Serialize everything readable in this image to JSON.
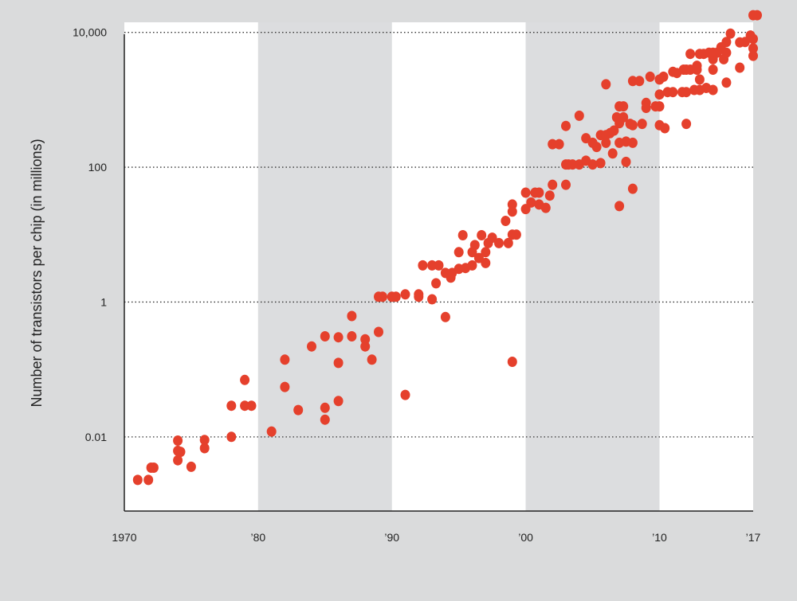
{
  "chart_data": {
    "type": "scatter",
    "title": "",
    "xlabel": "",
    "ylabel": "Number of transistors per chip (in millions)",
    "y_scale": "log",
    "xlim": [
      1970,
      2017
    ],
    "ylim_log10": [
      -3.1,
      4.15
    ],
    "x_ticks": [
      {
        "value": 1970,
        "label": "1970"
      },
      {
        "value": 1980,
        "label": "’80"
      },
      {
        "value": 1990,
        "label": "’90"
      },
      {
        "value": 2000,
        "label": "’00"
      },
      {
        "value": 2010,
        "label": "’10"
      },
      {
        "value": 2017,
        "label": "’17"
      }
    ],
    "y_ticks": [
      {
        "value": 0.01,
        "label": "0.01"
      },
      {
        "value": 1,
        "label": "1"
      },
      {
        "value": 100,
        "label": "100"
      },
      {
        "value": 10000,
        "label": "10,000"
      }
    ],
    "grid": "horizontal dotted at y ticks",
    "bands": [
      {
        "from": 1970,
        "to": 1980,
        "shade": "light"
      },
      {
        "from": 1980,
        "to": 1990,
        "shade": "dark"
      },
      {
        "from": 1990,
        "to": 2000,
        "shade": "light"
      },
      {
        "from": 2000,
        "to": 2010,
        "shade": "dark"
      },
      {
        "from": 2010,
        "to": 2017,
        "shade": "light"
      }
    ],
    "colors": {
      "point": "#e5402c",
      "band_light": "#ffffff",
      "band_dark": "#dcdddf",
      "grid": "#333333",
      "axis": "#222222"
    },
    "points": [
      [
        1971,
        0.0023
      ],
      [
        1972,
        0.0035
      ],
      [
        1972.2,
        0.0035
      ],
      [
        1971.8,
        0.0023
      ],
      [
        1974,
        0.0045
      ],
      [
        1974,
        0.0062
      ],
      [
        1974,
        0.0088
      ],
      [
        1974.2,
        0.006
      ],
      [
        1975,
        0.0036
      ],
      [
        1976,
        0.0068
      ],
      [
        1976,
        0.009
      ],
      [
        1978,
        0.029
      ],
      [
        1978,
        0.01
      ],
      [
        1979,
        0.029
      ],
      [
        1979,
        0.07
      ],
      [
        1979.5,
        0.029
      ],
      [
        1981,
        0.012
      ],
      [
        1982,
        0.055
      ],
      [
        1982,
        0.14
      ],
      [
        1983,
        0.025
      ],
      [
        1984,
        0.22
      ],
      [
        1985,
        0.027
      ],
      [
        1985,
        0.018
      ],
      [
        1985,
        0.31
      ],
      [
        1986,
        0.3
      ],
      [
        1986,
        0.125
      ],
      [
        1986,
        0.034
      ],
      [
        1987,
        0.31
      ],
      [
        1987,
        0.62
      ],
      [
        1988,
        0.22
      ],
      [
        1988,
        0.28
      ],
      [
        1988.5,
        0.14
      ],
      [
        1989,
        0.36
      ],
      [
        1989,
        1.2
      ],
      [
        1989.3,
        1.2
      ],
      [
        1990,
        1.2
      ],
      [
        1990.3,
        1.2
      ],
      [
        1991,
        1.3
      ],
      [
        1991,
        0.042
      ],
      [
        1992,
        1.3
      ],
      [
        1992,
        1.2
      ],
      [
        1992.3,
        3.5
      ],
      [
        1993,
        3.5
      ],
      [
        1993,
        1.1
      ],
      [
        1993.3,
        1.9
      ],
      [
        1993.5,
        3.5
      ],
      [
        1994,
        0.6
      ],
      [
        1994,
        2.7
      ],
      [
        1994.4,
        2.3
      ],
      [
        1994.5,
        2.7
      ],
      [
        1995,
        3.1
      ],
      [
        1995,
        5.5
      ],
      [
        1995.3,
        9.8
      ],
      [
        1995.5,
        3.2
      ],
      [
        1996,
        3.5
      ],
      [
        1996,
        5.5
      ],
      [
        1996.2,
        7
      ],
      [
        1996.5,
        4.5
      ],
      [
        1996.7,
        9.8
      ],
      [
        1997,
        3.8
      ],
      [
        1997,
        5.5
      ],
      [
        1997.2,
        7.5
      ],
      [
        1997.5,
        9
      ],
      [
        1998,
        7.5
      ],
      [
        1998.5,
        16
      ],
      [
        1998.7,
        7.5
      ],
      [
        1999,
        0.13
      ],
      [
        1999,
        10
      ],
      [
        1999,
        22
      ],
      [
        1999,
        28
      ],
      [
        1999.3,
        10
      ],
      [
        2000,
        24
      ],
      [
        2000,
        42
      ],
      [
        2000.4,
        30
      ],
      [
        2000.7,
        42
      ],
      [
        2001,
        28
      ],
      [
        2001,
        42
      ],
      [
        2001.5,
        25
      ],
      [
        2001.8,
        38
      ],
      [
        2002,
        55
      ],
      [
        2002,
        220
      ],
      [
        2002.5,
        220
      ],
      [
        2003,
        55
      ],
      [
        2003,
        410
      ],
      [
        2003,
        110
      ],
      [
        2003.2,
        110
      ],
      [
        2003.5,
        110
      ],
      [
        2004,
        110
      ],
      [
        2004,
        580
      ],
      [
        2004.5,
        125
      ],
      [
        2004.5,
        270
      ],
      [
        2005,
        110
      ],
      [
        2005,
        230
      ],
      [
        2005.3,
        200
      ],
      [
        2005.6,
        300
      ],
      [
        2005.6,
        115
      ],
      [
        2006,
        300
      ],
      [
        2006,
        230
      ],
      [
        2006,
        1700
      ],
      [
        2006.3,
        320
      ],
      [
        2006.5,
        160
      ],
      [
        2006.6,
        350
      ],
      [
        2006.8,
        550
      ],
      [
        2007,
        26.5
      ],
      [
        2007,
        230
      ],
      [
        2007,
        450
      ],
      [
        2007,
        800
      ],
      [
        2007.3,
        800
      ],
      [
        2007.3,
        550
      ],
      [
        2007.5,
        240
      ],
      [
        2007.5,
        120
      ],
      [
        2007.8,
        440
      ],
      [
        2008,
        230
      ],
      [
        2008,
        48
      ],
      [
        2008,
        420
      ],
      [
        2008,
        1900
      ],
      [
        2008.5,
        1900
      ],
      [
        2008.7,
        440
      ],
      [
        2009,
        900
      ],
      [
        2009,
        760
      ],
      [
        2009.3,
        2200
      ],
      [
        2009.7,
        800
      ],
      [
        2010,
        420
      ],
      [
        2010,
        800
      ],
      [
        2010,
        1200
      ],
      [
        2010,
        2000
      ],
      [
        2010.3,
        2200
      ],
      [
        2010.4,
        380
      ],
      [
        2010.6,
        1300
      ],
      [
        2011,
        1300
      ],
      [
        2011,
        2600
      ],
      [
        2011.3,
        2500
      ],
      [
        2011.7,
        1300
      ],
      [
        2011.8,
        2800
      ],
      [
        2012,
        1300
      ],
      [
        2012,
        2800
      ],
      [
        2012,
        440
      ],
      [
        2012.3,
        2800
      ],
      [
        2012.3,
        4800
      ],
      [
        2012.6,
        1400
      ],
      [
        2012.8,
        2800
      ],
      [
        2012.8,
        3200
      ],
      [
        2013,
        1400
      ],
      [
        2013,
        2000
      ],
      [
        2013,
        4800
      ],
      [
        2013.3,
        4800
      ],
      [
        2013.5,
        1500
      ],
      [
        2013.7,
        5000
      ],
      [
        2014,
        1400
      ],
      [
        2014,
        2800
      ],
      [
        2014,
        4000
      ],
      [
        2014,
        5000
      ],
      [
        2014.3,
        5000
      ],
      [
        2014.6,
        6000
      ],
      [
        2014.8,
        4000
      ],
      [
        2015,
        5000
      ],
      [
        2015,
        7200
      ],
      [
        2015,
        1800
      ],
      [
        2015.3,
        9600
      ],
      [
        2016,
        3000
      ],
      [
        2016,
        7100
      ],
      [
        2016.4,
        7200
      ],
      [
        2016.8,
        9000
      ],
      [
        2017,
        4500
      ],
      [
        2017,
        5800
      ],
      [
        2017,
        8000
      ],
      [
        2017,
        18000
      ],
      [
        2017.3,
        18000
      ]
    ]
  }
}
